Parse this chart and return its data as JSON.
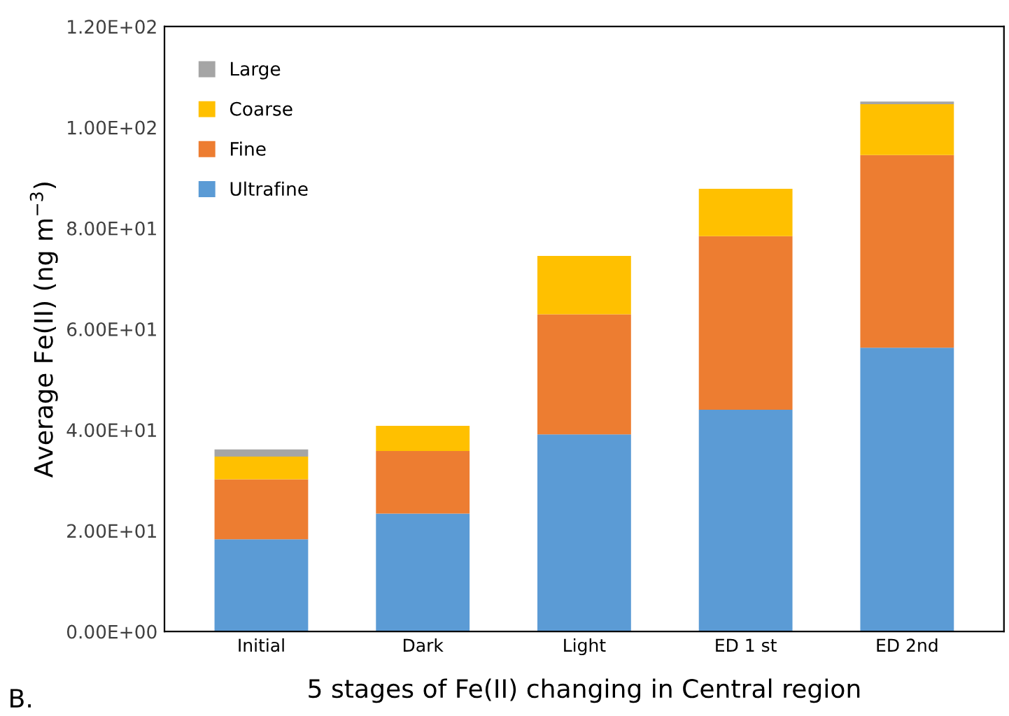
{
  "chart_data": {
    "type": "bar",
    "stacked": true,
    "xlabel": "5 stages of Fe(II) changing in Central region",
    "ylabel": "Average Fe(II) (ng m$^{−3}$)",
    "annotations": [
      "B."
    ],
    "categories": [
      "Initial",
      "Dark",
      "Light",
      "ED 1 st",
      "ED 2nd"
    ],
    "series": [
      {
        "name": "Ultrafine",
        "color": "#5b9bd5",
        "values": [
          18.3,
          23.4,
          39.1,
          44.0,
          56.3
        ]
      },
      {
        "name": "Fine",
        "color": "#ed7d31",
        "values": [
          11.9,
          12.4,
          23.8,
          34.4,
          38.2
        ]
      },
      {
        "name": "Coarse",
        "color": "#ffc000",
        "values": [
          4.5,
          5.0,
          11.6,
          9.4,
          10.1
        ]
      },
      {
        "name": "Large",
        "color": "#a5a5a5",
        "values": [
          1.4,
          null,
          null,
          null,
          0.5
        ]
      }
    ],
    "ylim": [
      0,
      120
    ],
    "yticks": [
      {
        "value": 0,
        "label": "0.00E+00"
      },
      {
        "value": 20,
        "label": "2.00E+01"
      },
      {
        "value": 40,
        "label": "4.00E+01"
      },
      {
        "value": 60,
        "label": "6.00E+01"
      },
      {
        "value": 80,
        "label": "8.00E+01"
      },
      {
        "value": 100,
        "label": "1.00E+02"
      },
      {
        "value": 120,
        "label": "1.20E+02"
      }
    ],
    "grid": false,
    "legend": "top left"
  }
}
